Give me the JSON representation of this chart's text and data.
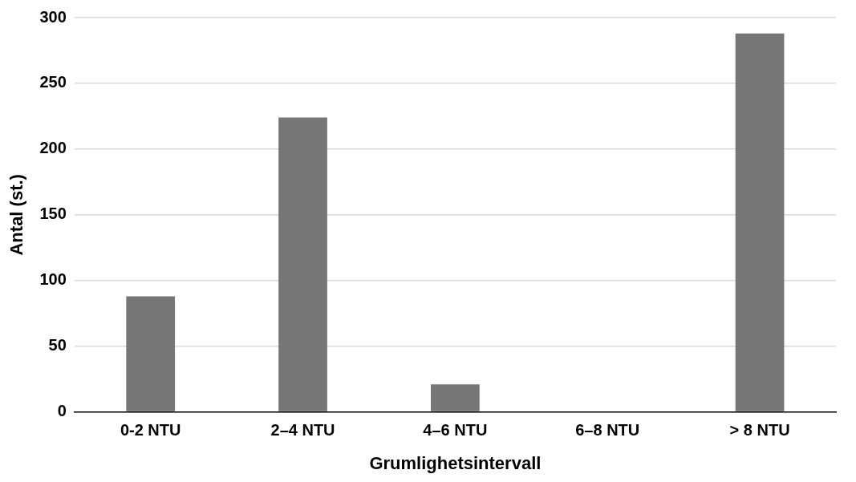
{
  "chart_data": {
    "type": "bar",
    "xlabel": "Grumlighetsintervall",
    "ylabel": "Antal (st.)",
    "categories": [
      "0-2 NTU",
      "2–4 NTU",
      "4–6 NTU",
      "6–8 NTU",
      "> 8 NTU"
    ],
    "values": [
      88,
      224,
      21,
      0,
      288
    ],
    "color": "#767676",
    "ylim": [
      0,
      300
    ],
    "yticks": [
      0,
      50,
      100,
      150,
      200,
      250,
      300
    ],
    "grid": "y",
    "legend": false
  }
}
